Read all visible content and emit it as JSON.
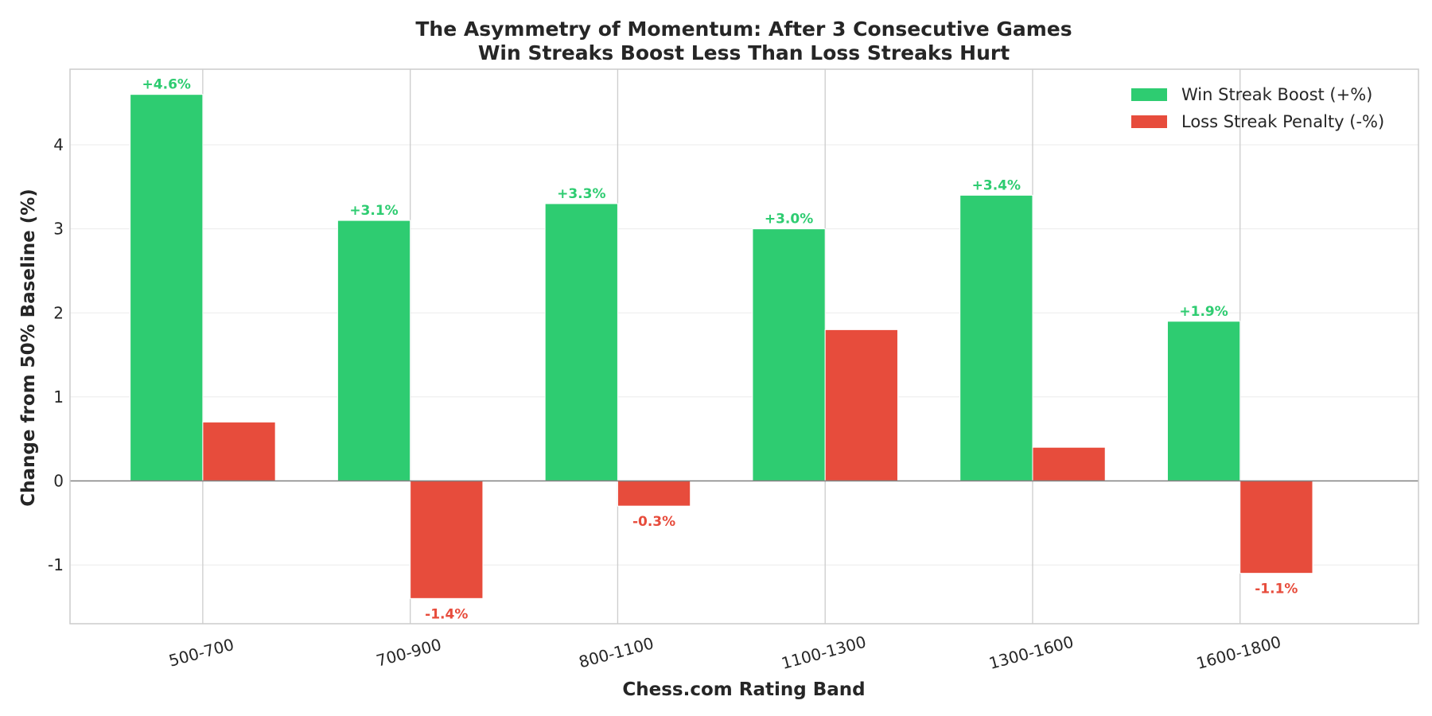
{
  "chart_data": {
    "type": "bar",
    "title_lines": [
      "The Asymmetry of Momentum: After 3 Consecutive Games",
      "Win Streaks Boost Less Than Loss Streaks Hurt"
    ],
    "xlabel": "Chess.com Rating Band",
    "ylabel": "Change from 50% Baseline (%)",
    "categories": [
      "500-700",
      "700-900",
      "800-1100",
      "1100-1300",
      "1300-1600",
      "1600-1800"
    ],
    "series": [
      {
        "name": "Win Streak Boost (+%)",
        "color": "#2ecc71",
        "values": [
          4.6,
          3.1,
          3.3,
          3.0,
          3.4,
          1.9
        ],
        "labels": [
          "+4.6%",
          "+3.1%",
          "+3.3%",
          "+3.0%",
          "+3.4%",
          "+1.9%"
        ]
      },
      {
        "name": "Loss Streak Penalty (-%)",
        "color": "#e74c3c",
        "values": [
          0.7,
          -1.4,
          -0.3,
          1.8,
          0.4,
          -1.1
        ],
        "labels": [
          "",
          "-1.4%",
          "-0.3%",
          "",
          "",
          "-1.1%"
        ]
      }
    ],
    "ylim": [
      -1.7,
      4.9
    ],
    "yticks": [
      -1,
      0,
      1,
      2,
      3,
      4
    ],
    "grid": true,
    "legend_position": "top-right"
  }
}
